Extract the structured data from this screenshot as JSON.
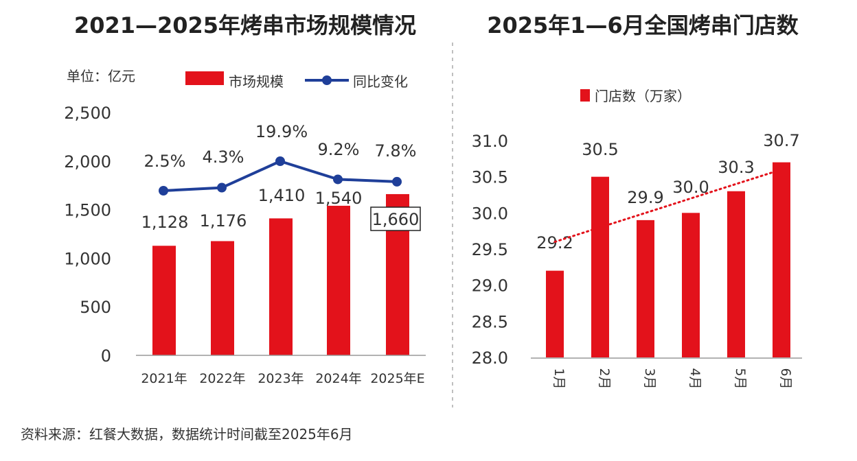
{
  "left": {
    "title": "2021—2025年烤串市场规模情况",
    "unit": "单位：亿元",
    "legend": {
      "bar": "市场规模",
      "line": "同比变化"
    }
  },
  "right": {
    "title": "2025年1—6月全国烤串门店数",
    "legend": "门店数（万家）"
  },
  "source": "资料来源：红餐大数据，数据统计时间截至2025年6月",
  "colors": {
    "bar": "#e3121b",
    "line": "#1f3f99",
    "trend": "#e3121b",
    "axis": "#999999",
    "divider": "#aaaaaa"
  },
  "chart_data": [
    {
      "type": "bar",
      "categories": [
        "2021年",
        "2022年",
        "2023年",
        "2024年",
        "2025年E"
      ],
      "series": [
        {
          "name": "市场规模",
          "values": [
            1128,
            1176,
            1410,
            1540,
            1660
          ],
          "labels": [
            "1,128",
            "1,176",
            "1,410",
            "1,540",
            "1,660"
          ]
        },
        {
          "name": "同比变化",
          "type": "line",
          "values": [
            2.5,
            4.3,
            19.9,
            9.2,
            7.8
          ],
          "labels": [
            "2.5%",
            "4.3%",
            "19.9%",
            "9.2%",
            "7.8%"
          ]
        }
      ],
      "yticks": [
        "0",
        "500",
        "1,000",
        "1,500",
        "2,000",
        "2,500"
      ],
      "ylim": [
        0,
        2500
      ],
      "highlighted_label": "1,660"
    },
    {
      "type": "bar",
      "categories": [
        "1月",
        "2月",
        "3月",
        "4月",
        "5月",
        "6月"
      ],
      "series": [
        {
          "name": "门店数（万家）",
          "values": [
            29.2,
            30.5,
            29.9,
            30.0,
            30.3,
            30.7
          ],
          "labels": [
            "29.2",
            "30.5",
            "29.9",
            "30.0",
            "30.3",
            "30.7"
          ]
        }
      ],
      "yticks": [
        "28.0",
        "28.5",
        "29.0",
        "29.5",
        "30.0",
        "30.5",
        "31.0"
      ],
      "ylim": [
        28.0,
        31.0
      ],
      "trendline": "linear"
    }
  ]
}
